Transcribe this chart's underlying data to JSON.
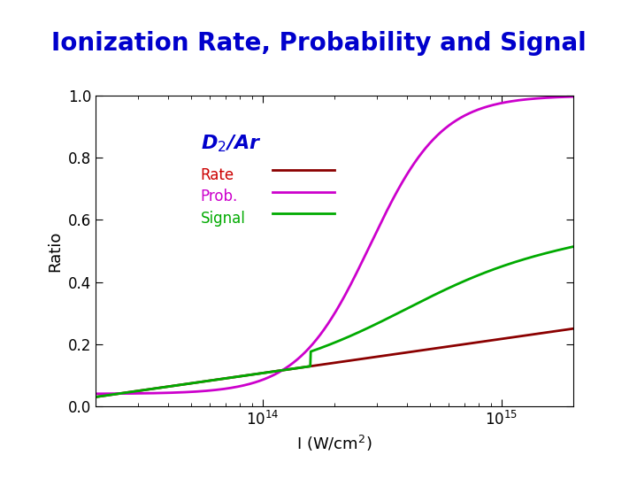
{
  "title": "Ionization Rate, Probability and Signal",
  "title_color": "#0000cc",
  "title_bg_color": "#ffffcc",
  "xlabel": "I (W/cm$^2$)",
  "ylabel": "Ratio",
  "xlim_log": [
    13.3,
    15.3
  ],
  "ylim": [
    0.0,
    1.0
  ],
  "xticks_log": [
    14,
    15
  ],
  "yticks": [
    0.0,
    0.2,
    0.4,
    0.6,
    0.8,
    1.0
  ],
  "label_D2Ar": "D$_2$/Ar",
  "label_rate": "Rate",
  "label_prob": "Prob.",
  "label_signal": "Signal",
  "color_rate": "#8b0000",
  "color_prob": "#cc00cc",
  "color_signal": "#00aa00",
  "bg_color": "#ffffff",
  "plot_bg_color": "#ffffff"
}
